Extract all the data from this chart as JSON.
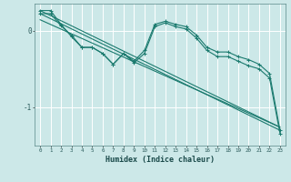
{
  "xlabel": "Humidex (Indice chaleur)",
  "bg_color": "#cce8e8",
  "grid_color": "#ffffff",
  "line_color": "#1a7a6e",
  "yticks": [
    0,
    -1
  ],
  "ylim": [
    -1.5,
    0.35
  ],
  "xlim": [
    -0.5,
    23.5
  ],
  "xtick_labels": [
    "0",
    "1",
    "2",
    "3",
    "4",
    "5",
    "6",
    "7",
    "8",
    "9",
    "10",
    "11",
    "12",
    "13",
    "14",
    "15",
    "16",
    "17",
    "18",
    "19",
    "20",
    "21",
    "22",
    "23"
  ],
  "series1_x": [
    0,
    1,
    2,
    3,
    4,
    5,
    6,
    7,
    8,
    9,
    10,
    11,
    12,
    13,
    14,
    15,
    16,
    17,
    18,
    19,
    20,
    21,
    22,
    23
  ],
  "series1_y": [
    0.26,
    0.26,
    0.08,
    -0.08,
    -0.22,
    -0.22,
    -0.3,
    -0.44,
    -0.3,
    -0.4,
    -0.26,
    0.08,
    0.12,
    0.08,
    0.05,
    -0.06,
    -0.22,
    -0.28,
    -0.28,
    -0.34,
    -0.38,
    -0.44,
    -0.56,
    -1.3
  ],
  "series2_x": [
    0,
    1,
    2,
    3,
    4,
    5,
    6,
    7,
    8,
    9,
    10,
    11,
    12,
    13,
    14,
    15,
    16,
    17,
    18,
    19,
    20,
    21,
    22,
    23
  ],
  "series2_y": [
    0.22,
    0.22,
    0.06,
    -0.06,
    -0.22,
    -0.22,
    -0.3,
    -0.44,
    -0.3,
    -0.42,
    -0.3,
    0.05,
    0.1,
    0.05,
    0.02,
    -0.1,
    -0.26,
    -0.34,
    -0.34,
    -0.4,
    -0.46,
    -0.5,
    -0.62,
    -1.34
  ],
  "trend1_x": [
    0,
    23
  ],
  "trend1_y": [
    0.26,
    -1.26
  ],
  "trend2_x": [
    0,
    23
  ],
  "trend2_y": [
    0.22,
    -1.3
  ],
  "trend3_x": [
    0,
    23
  ],
  "trend3_y": [
    0.14,
    -1.26
  ]
}
